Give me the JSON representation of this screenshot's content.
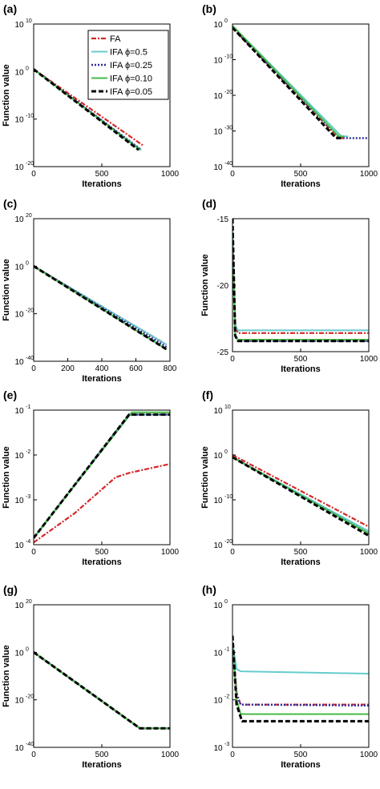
{
  "series_styles": [
    {
      "name": "FA",
      "color": "#d62728",
      "dash": "6,2,2,2",
      "width": 2.2
    },
    {
      "name": "IFA ϕ=0.5",
      "color": "#66cccc",
      "dash": "",
      "width": 2
    },
    {
      "name": "IFA ϕ=0.25",
      "color": "#2b2b9a",
      "dash": "2,2",
      "width": 2.4
    },
    {
      "name": "IFA ϕ=0.10",
      "color": "#44bb44",
      "dash": "",
      "width": 2
    },
    {
      "name": "IFA ϕ=0.05",
      "color": "#000000",
      "dash": "6,3",
      "width": 3
    }
  ],
  "chart_data": [
    {
      "panel": "(a)",
      "type": "line",
      "xlabel": "Iterations",
      "ylabel": "Function value",
      "yscale": "log",
      "xlim": [
        0,
        1000
      ],
      "ylim": [
        -20,
        10
      ],
      "xticks": [
        0,
        500,
        1000
      ],
      "yticks": [
        10,
        0,
        -10,
        -20
      ],
      "legend": "top-right",
      "series": [
        {
          "name": "FA",
          "x": [
            0,
            800
          ],
          "y": [
            0.5,
            -15.5
          ]
        },
        {
          "name": "IFA ϕ=0.5",
          "x": [
            0,
            790
          ],
          "y": [
            0.5,
            -16.5
          ]
        },
        {
          "name": "IFA ϕ=0.25",
          "x": [
            0,
            790
          ],
          "y": [
            0.5,
            -16.5
          ]
        },
        {
          "name": "IFA ϕ=0.10",
          "x": [
            0,
            780
          ],
          "y": [
            0.5,
            -16.5
          ]
        },
        {
          "name": "IFA ϕ=0.05",
          "x": [
            0,
            770
          ],
          "y": [
            0.5,
            -16.5
          ]
        }
      ]
    },
    {
      "panel": "(b)",
      "type": "line",
      "xlabel": "Iterations",
      "ylabel": "",
      "yscale": "log",
      "xlim": [
        0,
        1000
      ],
      "ylim": [
        -40,
        0
      ],
      "xticks": [
        0,
        500,
        1000
      ],
      "yticks": [
        0,
        -10,
        -20,
        -30,
        -40
      ],
      "series": [
        {
          "name": "FA",
          "x": [
            0,
            780,
            830
          ],
          "y": [
            -1,
            -32,
            -32
          ]
        },
        {
          "name": "IFA ϕ=0.5",
          "x": [
            0,
            800,
            850
          ],
          "y": [
            -0.5,
            -31.5,
            -31.5
          ]
        },
        {
          "name": "IFA ϕ=0.25",
          "x": [
            0,
            790,
            1000
          ],
          "y": [
            -1,
            -32,
            -32
          ]
        },
        {
          "name": "IFA ϕ=0.10",
          "x": [
            0,
            780,
            820
          ],
          "y": [
            -0.5,
            -31.5,
            -31.5
          ]
        },
        {
          "name": "IFA ϕ=0.05",
          "x": [
            0,
            760,
            800
          ],
          "y": [
            -1,
            -32,
            -32
          ]
        }
      ]
    },
    {
      "panel": "(c)",
      "type": "line",
      "xlabel": "Iterations",
      "ylabel": "Function value",
      "yscale": "log",
      "xlim": [
        0,
        800
      ],
      "ylim": [
        -40,
        20
      ],
      "xticks": [
        0,
        200,
        400,
        600,
        800
      ],
      "yticks": [
        20,
        0,
        -20,
        -40
      ],
      "series": [
        {
          "name": "FA",
          "x": [
            0,
            780
          ],
          "y": [
            0,
            -33
          ]
        },
        {
          "name": "IFA ϕ=0.5",
          "x": [
            0,
            780
          ],
          "y": [
            0,
            -33
          ]
        },
        {
          "name": "IFA ϕ=0.25",
          "x": [
            0,
            780
          ],
          "y": [
            0,
            -34
          ]
        },
        {
          "name": "IFA ϕ=0.10",
          "x": [
            0,
            780
          ],
          "y": [
            0,
            -35
          ]
        },
        {
          "name": "IFA ϕ=0.05",
          "x": [
            0,
            780
          ],
          "y": [
            0,
            -35
          ]
        }
      ]
    },
    {
      "panel": "(d)",
      "type": "line",
      "xlabel": "Iterations",
      "ylabel": "Function value",
      "yscale": "linear",
      "xlim": [
        0,
        1000
      ],
      "ylim": [
        -25,
        -15
      ],
      "xticks": [
        0,
        500,
        1000
      ],
      "yticks": [
        -15,
        -20,
        -25
      ],
      "series": [
        {
          "name": "FA",
          "x": [
            0,
            20,
            40,
            1000
          ],
          "y": [
            -16,
            -23,
            -23.6,
            -23.6
          ]
        },
        {
          "name": "IFA ϕ=0.5",
          "x": [
            0,
            20,
            40,
            1000
          ],
          "y": [
            -17,
            -23,
            -23.4,
            -23.4
          ]
        },
        {
          "name": "IFA ϕ=0.25",
          "x": [
            0,
            20,
            40,
            1000
          ],
          "y": [
            -16,
            -23.8,
            -24.2,
            -24.2
          ]
        },
        {
          "name": "IFA ϕ=0.10",
          "x": [
            0,
            20,
            40,
            1000
          ],
          "y": [
            -16,
            -23.8,
            -24.1,
            -24.1
          ]
        },
        {
          "name": "IFA ϕ=0.05",
          "x": [
            0,
            20,
            40,
            1000
          ],
          "y": [
            -15,
            -23.8,
            -24.2,
            -24.2
          ]
        }
      ]
    },
    {
      "panel": "(e)",
      "type": "line",
      "xlabel": "Iterations",
      "ylabel": "Function value",
      "yscale": "log",
      "xlim": [
        0,
        1000
      ],
      "ylim": [
        -4,
        -1
      ],
      "xticks": [
        0,
        500,
        1000
      ],
      "yticks": [
        -4,
        -3,
        -2,
        -1
      ],
      "series": [
        {
          "name": "FA",
          "x": [
            0,
            300,
            600,
            700,
            1000
          ],
          "y": [
            -3.95,
            -3.3,
            -2.5,
            -2.4,
            -2.2
          ]
        },
        {
          "name": "IFA ϕ=0.5",
          "x": [
            0,
            700,
            1000
          ],
          "y": [
            -3.85,
            -1.1,
            -1.1
          ]
        },
        {
          "name": "IFA ϕ=0.25",
          "x": [
            0,
            700,
            1000
          ],
          "y": [
            -3.85,
            -1.1,
            -1.1
          ]
        },
        {
          "name": "IFA ϕ=0.10",
          "x": [
            0,
            720,
            1000
          ],
          "y": [
            -3.85,
            -1.05,
            -1.05
          ]
        },
        {
          "name": "IFA ϕ=0.05",
          "x": [
            0,
            700,
            1000
          ],
          "y": [
            -3.85,
            -1.1,
            -1.1
          ]
        }
      ]
    },
    {
      "panel": "(f)",
      "type": "line",
      "xlabel": "Iterations",
      "ylabel": "Function value",
      "yscale": "log",
      "xlim": [
        0,
        1000
      ],
      "ylim": [
        -20,
        10
      ],
      "xticks": [
        0,
        500,
        1000
      ],
      "yticks": [
        10,
        0,
        -10,
        -20
      ],
      "series": [
        {
          "name": "FA",
          "x": [
            0,
            1000
          ],
          "y": [
            0,
            -16
          ]
        },
        {
          "name": "IFA ϕ=0.5",
          "x": [
            0,
            1000
          ],
          "y": [
            -0.5,
            -17
          ]
        },
        {
          "name": "IFA ϕ=0.25",
          "x": [
            0,
            1000
          ],
          "y": [
            -0.5,
            -17.5
          ]
        },
        {
          "name": "IFA ϕ=0.10",
          "x": [
            0,
            1000
          ],
          "y": [
            -0.5,
            -17.5
          ]
        },
        {
          "name": "IFA ϕ=0.05",
          "x": [
            0,
            1000
          ],
          "y": [
            -0.5,
            -18
          ]
        }
      ]
    },
    {
      "panel": "(g)",
      "type": "line",
      "xlabel": "Iterations",
      "ylabel": "Function value",
      "yscale": "log",
      "xlim": [
        0,
        1000
      ],
      "ylim": [
        -40,
        20
      ],
      "xticks": [
        0,
        500,
        1000
      ],
      "yticks": [
        20,
        0,
        -20,
        -40
      ],
      "series": [
        {
          "name": "FA",
          "x": [
            0,
            780,
            1000
          ],
          "y": [
            0,
            -32,
            -32
          ]
        },
        {
          "name": "IFA ϕ=0.5",
          "x": [
            0,
            780,
            1000
          ],
          "y": [
            0,
            -32,
            -32
          ]
        },
        {
          "name": "IFA ϕ=0.25",
          "x": [
            0,
            780,
            1000
          ],
          "y": [
            0,
            -32,
            -32
          ]
        },
        {
          "name": "IFA ϕ=0.10",
          "x": [
            0,
            780,
            1000
          ],
          "y": [
            0,
            -32,
            -32
          ]
        },
        {
          "name": "IFA ϕ=0.05",
          "x": [
            0,
            780,
            1000
          ],
          "y": [
            0,
            -32,
            -32
          ]
        }
      ]
    },
    {
      "panel": "(h)",
      "type": "line",
      "xlabel": "Iterations",
      "ylabel": "",
      "yscale": "log",
      "xlim": [
        0,
        1000
      ],
      "ylim": [
        -3,
        0
      ],
      "xticks": [
        0,
        500,
        1000
      ],
      "yticks": [
        0,
        -1,
        -2,
        -3
      ],
      "series": [
        {
          "name": "FA",
          "x": [
            0,
            30,
            60,
            1000
          ],
          "y": [
            -0.8,
            -1.85,
            -2.1,
            -2.1
          ]
        },
        {
          "name": "IFA ϕ=0.5",
          "x": [
            0,
            30,
            60,
            1000
          ],
          "y": [
            -0.8,
            -1.35,
            -1.4,
            -1.45
          ]
        },
        {
          "name": "IFA ϕ=0.25",
          "x": [
            0,
            30,
            60,
            1000
          ],
          "y": [
            -0.8,
            -1.9,
            -2.1,
            -2.12
          ]
        },
        {
          "name": "IFA ϕ=0.10",
          "x": [
            0,
            30,
            60,
            1000
          ],
          "y": [
            -0.8,
            -2.0,
            -2.3,
            -2.3
          ]
        },
        {
          "name": "IFA ϕ=0.05",
          "x": [
            0,
            30,
            70,
            1000
          ],
          "y": [
            -0.65,
            -2.1,
            -2.45,
            -2.45
          ]
        }
      ]
    }
  ]
}
